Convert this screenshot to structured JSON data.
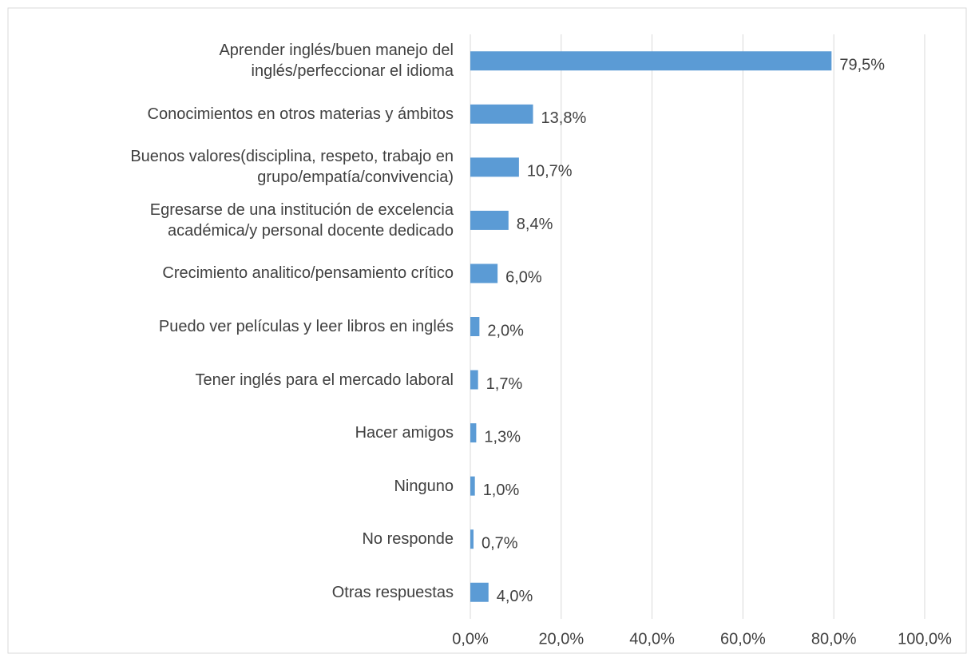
{
  "chart_data": {
    "type": "barh",
    "categories": [
      "Aprender inglés/buen manejo del\ninglés/perfeccionar el idioma",
      "Conocimientos en otros materias y ámbitos",
      "Buenos valores(disciplina, respeto, trabajo en\ngrupo/empatía/convivencia)",
      "Egresarse de una institución de excelencia\nacadémica/y personal docente dedicado",
      "Crecimiento analitico/pensamiento crítico",
      "Puedo ver películas y leer libros en inglés",
      "Tener inglés para el mercado laboral",
      "Hacer amigos",
      "Ninguno",
      "No responde",
      "Otras respuestas"
    ],
    "values": [
      79.5,
      13.8,
      10.7,
      8.4,
      6.0,
      2.0,
      1.7,
      1.3,
      1.0,
      0.7,
      4.0
    ],
    "value_labels": [
      "79,5%",
      "13,8%",
      "10,7%",
      "8,4%",
      "6,0%",
      "2,0%",
      "1,7%",
      "1,3%",
      "1,0%",
      "0,7%",
      "4,0%"
    ],
    "color": "#5b9bd5",
    "xlim": [
      0,
      100
    ],
    "xticks": [
      {
        "value": 0,
        "label": "0,0%"
      },
      {
        "value": 20,
        "label": "20,0%"
      },
      {
        "value": 40,
        "label": "40,0%"
      },
      {
        "value": 60,
        "label": "60,0%"
      },
      {
        "value": 80,
        "label": "80,0%"
      },
      {
        "value": 100,
        "label": "100,0%"
      }
    ],
    "grid": true
  }
}
